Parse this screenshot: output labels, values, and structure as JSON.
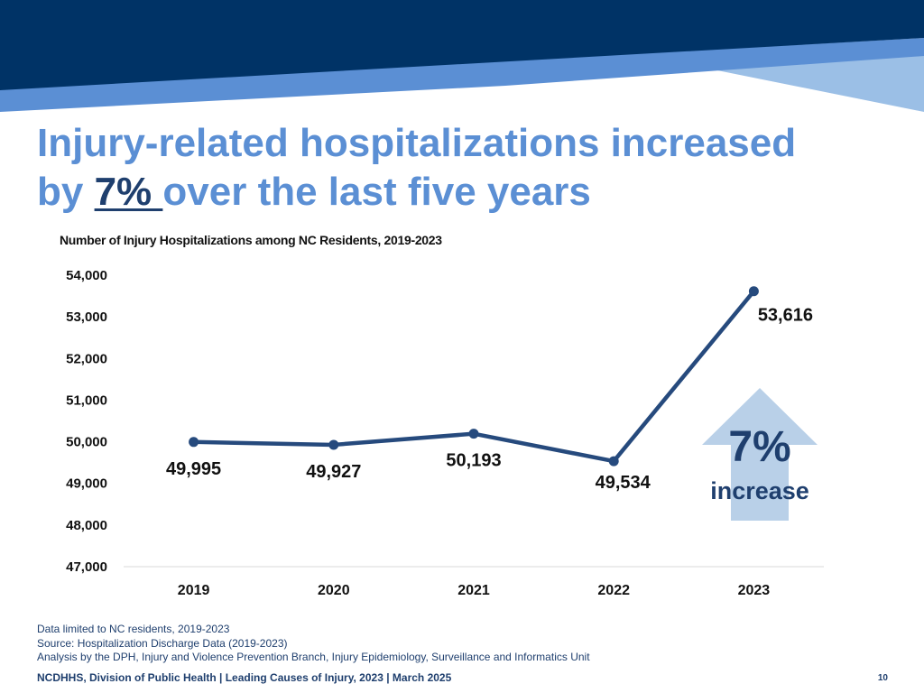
{
  "slide": {
    "title_line1": "Injury-related hospitalizations increased",
    "title_by": "by ",
    "title_highlight": "7% ",
    "title_rest": "over the last five years",
    "colors": {
      "banner_dark": "#003366",
      "banner_mid": "#5b8fd4",
      "banner_light": "#9bbfe6",
      "title": "#5b8fd4",
      "highlight": "#1f3f6e",
      "line": "#264a7d",
      "arrow": "#b9d0e8"
    },
    "callout": {
      "percent": "7%",
      "label": "increase",
      "icon": "up-arrow-icon"
    },
    "footnotes": [
      "Data limited to NC residents, 2019-2023",
      "Source: Hospitalization Discharge Data (2019-2023)",
      "Analysis by the DPH, Injury and Violence Prevention Branch, Injury Epidemiology, Surveillance and Informatics Unit"
    ],
    "footer": "NCDHHS, Division of Public Health | Leading Causes of Injury, 2023 | March 2025",
    "page_number": "10"
  },
  "chart_data": {
    "type": "line",
    "title": "Number of Injury Hospitalizations among NC Residents, 2019-2023",
    "categories": [
      "2019",
      "2020",
      "2021",
      "2022",
      "2023"
    ],
    "values": [
      49995,
      49927,
      50193,
      49534,
      53616
    ],
    "data_labels": [
      "49,995",
      "49,927",
      "50,193",
      "49,534",
      "53,616"
    ],
    "ylim": [
      47000,
      54000
    ],
    "yticks": [
      54000,
      53000,
      52000,
      51000,
      50000,
      49000,
      48000,
      47000
    ],
    "ytick_labels": [
      "54,000",
      "53,000",
      "52,000",
      "51,000",
      "50,000",
      "49,000",
      "48,000",
      "47,000"
    ],
    "xlabel": "",
    "ylabel": "",
    "grid": false
  }
}
